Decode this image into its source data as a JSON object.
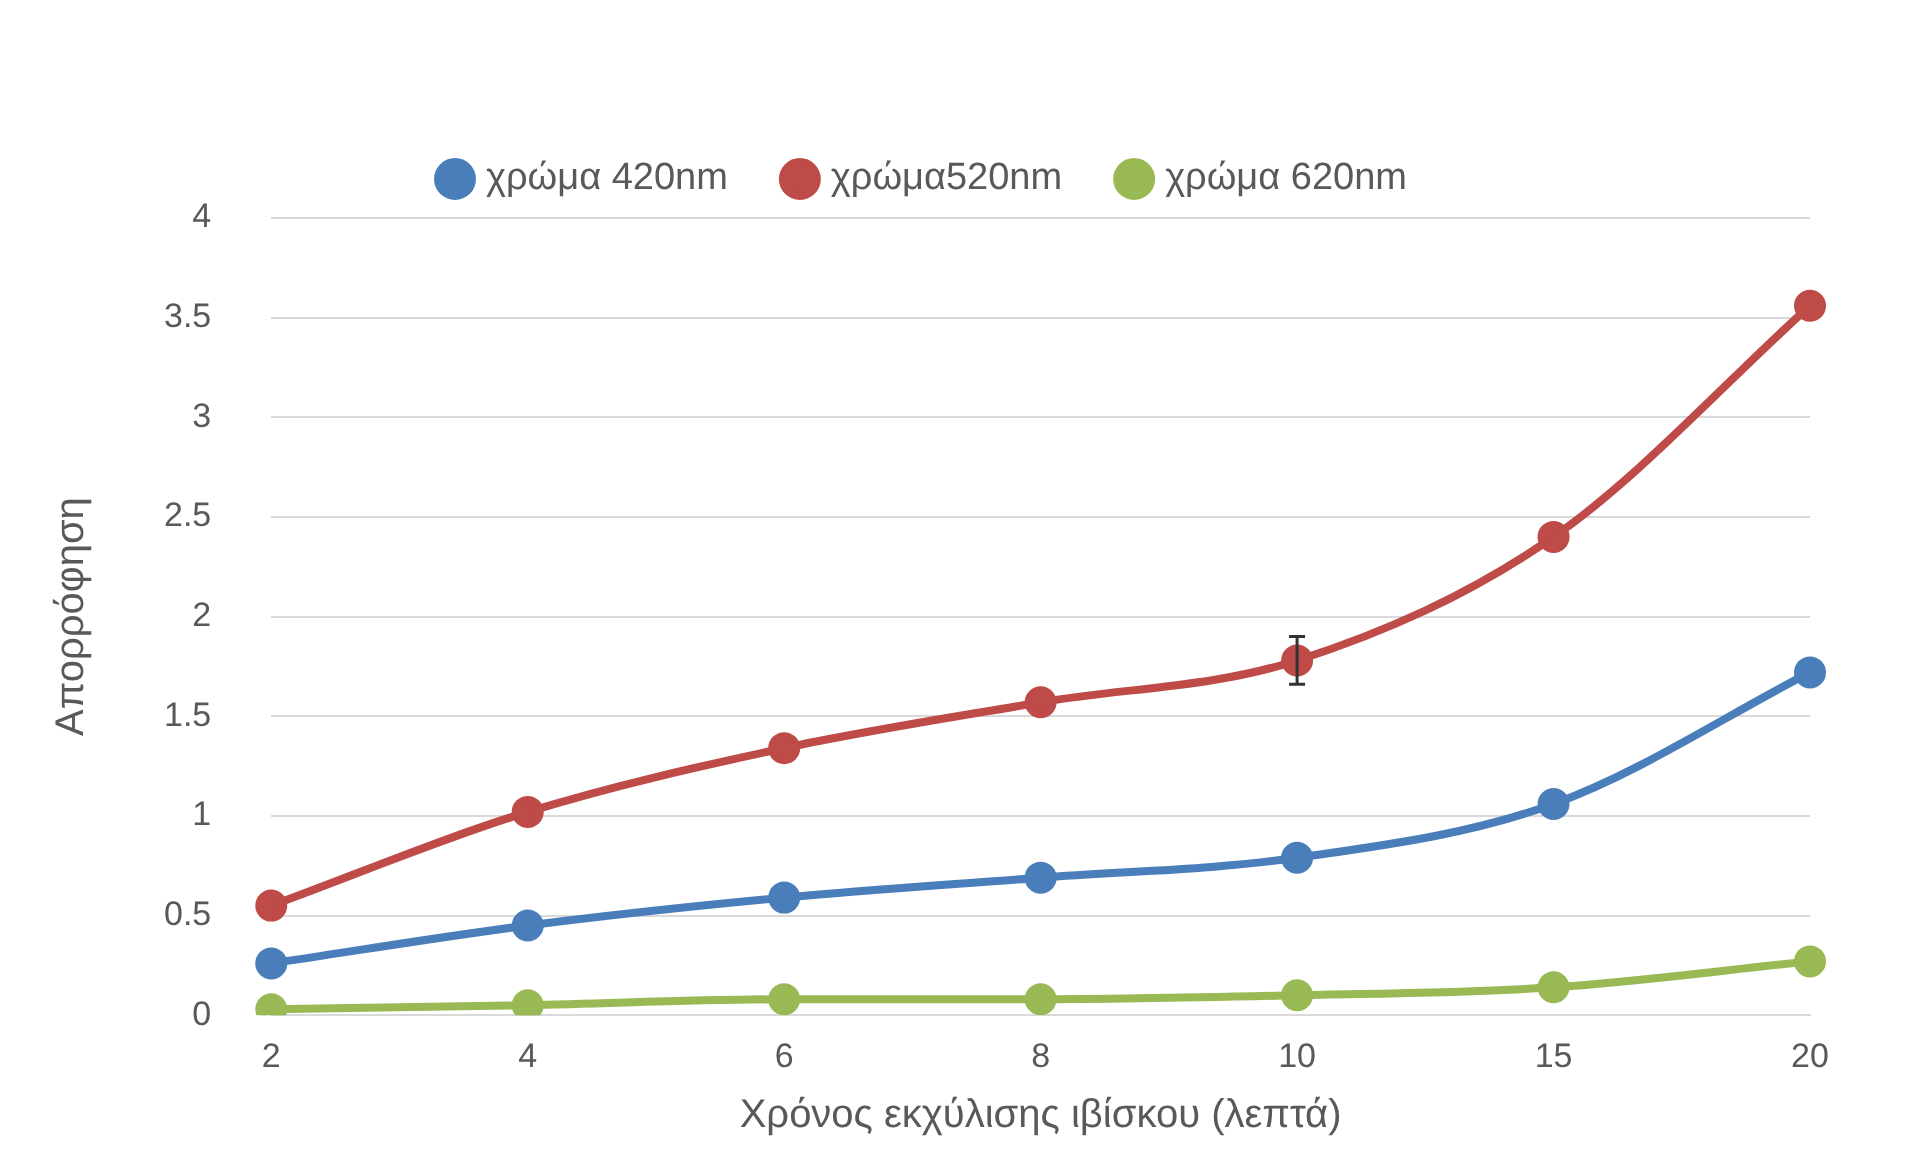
{
  "chart_data": {
    "type": "line",
    "xlabel": "Χρόνος εκχύλισης ιβίσκου (λεπτά)",
    "ylabel": "Απορρόφηση",
    "categories": [
      "2",
      "4",
      "6",
      "8",
      "10",
      "15",
      "20"
    ],
    "series": [
      {
        "name": "χρώμα 420nm",
        "color": "#4a7ebb",
        "values": [
          0.26,
          0.45,
          0.59,
          0.69,
          0.79,
          1.06,
          1.72
        ]
      },
      {
        "name": "χρώμα520nm",
        "color": "#be4b48",
        "values": [
          0.55,
          1.02,
          1.34,
          1.57,
          1.78,
          2.4,
          3.56
        ],
        "errors": [
          null,
          null,
          null,
          null,
          0.12,
          null,
          null
        ]
      },
      {
        "name": "χρώμα 620nm",
        "color": "#98b954",
        "values": [
          0.03,
          0.05,
          0.08,
          0.08,
          0.1,
          0.14,
          0.27
        ]
      }
    ],
    "ylim": [
      0,
      4
    ],
    "yticks": [
      0,
      0.5,
      1,
      1.5,
      2,
      2.5,
      3,
      3.5,
      4
    ],
    "grid": "y",
    "legend": "top",
    "marker": "circle",
    "line_style": "solid"
  }
}
